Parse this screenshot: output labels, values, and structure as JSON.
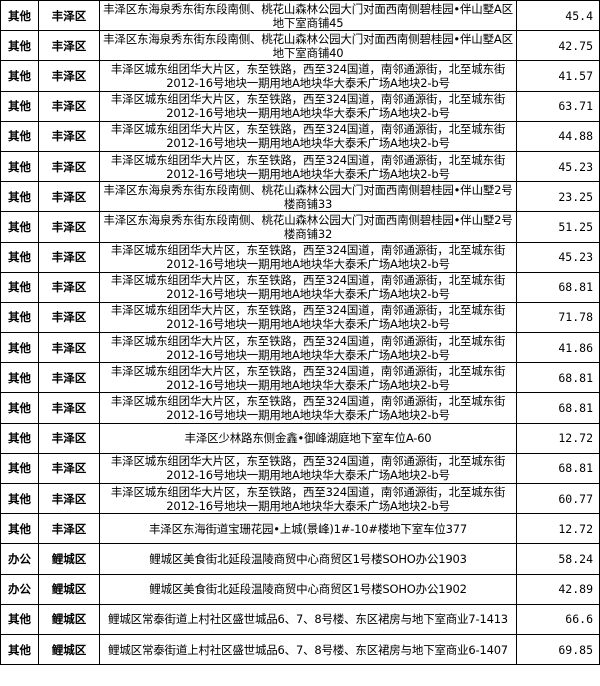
{
  "table": {
    "rows": [
      [
        "其他",
        "丰泽区",
        "丰泽区东海泉秀东街东段南侧、桃花山森林公园大门对面西南侧碧桂园•伴山墅A区地下室商铺45",
        "45.4"
      ],
      [
        "其他",
        "丰泽区",
        "丰泽区东海泉秀东街东段南侧、桃花山森林公园大门对面西南侧碧桂园•伴山墅A区地下室商铺40",
        "42.75"
      ],
      [
        "其他",
        "丰泽区",
        "丰泽区城东组团华大片区，东至铁路，西至324国道，南邻通源街，北至城东街2012-16号地块一期用地A地块华大泰禾广场A地块2-b号",
        "41.57"
      ],
      [
        "其他",
        "丰泽区",
        "丰泽区城东组团华大片区，东至铁路，西至324国道，南邻通源街，北至城东街2012-16号地块一期用地A地块华大泰禾广场A地块2-b号",
        "63.71"
      ],
      [
        "其他",
        "丰泽区",
        "丰泽区城东组团华大片区，东至铁路，西至324国道，南邻通源街，北至城东街2012-16号地块一期用地A地块华大泰禾广场A地块2-b号",
        "44.88"
      ],
      [
        "其他",
        "丰泽区",
        "丰泽区城东组团华大片区，东至铁路，西至324国道，南邻通源街，北至城东街2012-16号地块一期用地A地块华大泰禾广场A地块2-b号",
        "45.23"
      ],
      [
        "其他",
        "丰泽区",
        "丰泽区东海泉秀东街东段南侧、桃花山森林公园大门对面西南侧碧桂园•伴山墅2号楼商铺33",
        "23.25"
      ],
      [
        "其他",
        "丰泽区",
        "丰泽区东海泉秀东街东段南侧、桃花山森林公园大门对面西南侧碧桂园•伴山墅2号楼商铺32",
        "51.25"
      ],
      [
        "其他",
        "丰泽区",
        "丰泽区城东组团华大片区，东至铁路，西至324国道，南邻通源街，北至城东街2012-16号地块一期用地A地块华大泰禾广场A地块2-b号",
        "45.23"
      ],
      [
        "其他",
        "丰泽区",
        "丰泽区城东组团华大片区，东至铁路，西至324国道，南邻通源街，北至城东街2012-16号地块一期用地A地块华大泰禾广场A地块2-b号",
        "68.81"
      ],
      [
        "其他",
        "丰泽区",
        "丰泽区城东组团华大片区，东至铁路，西至324国道，南邻通源街，北至城东街2012-16号地块一期用地A地块华大泰禾广场A地块2-b号",
        "71.78"
      ],
      [
        "其他",
        "丰泽区",
        "丰泽区城东组团华大片区，东至铁路，西至324国道，南邻通源街，北至城东街2012-16号地块一期用地A地块华大泰禾广场A地块2-b号",
        "41.86"
      ],
      [
        "其他",
        "丰泽区",
        "丰泽区城东组团华大片区，东至铁路，西至324国道，南邻通源街，北至城东街2012-16号地块一期用地A地块华大泰禾广场A地块2-b号",
        "68.81"
      ],
      [
        "其他",
        "丰泽区",
        "丰泽区城东组团华大片区，东至铁路，西至324国道，南邻通源街，北至城东街2012-16号地块一期用地A地块华大泰禾广场A地块2-b号",
        "68.81"
      ],
      [
        "其他",
        "丰泽区",
        "丰泽区少林路东侧金鑫•御峰湖庭地下室车位A-60",
        "12.72"
      ],
      [
        "其他",
        "丰泽区",
        "丰泽区城东组团华大片区，东至铁路，西至324国道，南邻通源街，北至城东街2012-16号地块一期用地A地块华大泰禾广场A地块2-b号",
        "68.81"
      ],
      [
        "其他",
        "丰泽区",
        "丰泽区城东组团华大片区，东至铁路，西至324国道，南邻通源街，北至城东街2012-16号地块一期用地A地块华大泰禾广场A地块2-b号",
        "60.77"
      ],
      [
        "其他",
        "丰泽区",
        "丰泽区东海街道宝珊花园•上城(景峰)1#-10#楼地下室车位377",
        "12.72"
      ],
      [
        "办公",
        "鲤城区",
        "鲤城区美食街北延段温陵商贸中心商贸区1号楼SOHO办公1903",
        "58.24"
      ],
      [
        "办公",
        "鲤城区",
        "鲤城区美食街北延段温陵商贸中心商贸区1号楼SOHO办公1902",
        "42.89"
      ],
      [
        "其他",
        "鲤城区",
        "鲤城区常泰街道上村社区盛世城品6、7、8号楼、东区裙房与地下室商业7-1413",
        "66.6"
      ],
      [
        "其他",
        "鲤城区",
        "鲤城区常泰街道上村社区盛世城品6、7、8号楼、东区裙房与地下室商业6-1407",
        "69.85"
      ]
    ]
  }
}
